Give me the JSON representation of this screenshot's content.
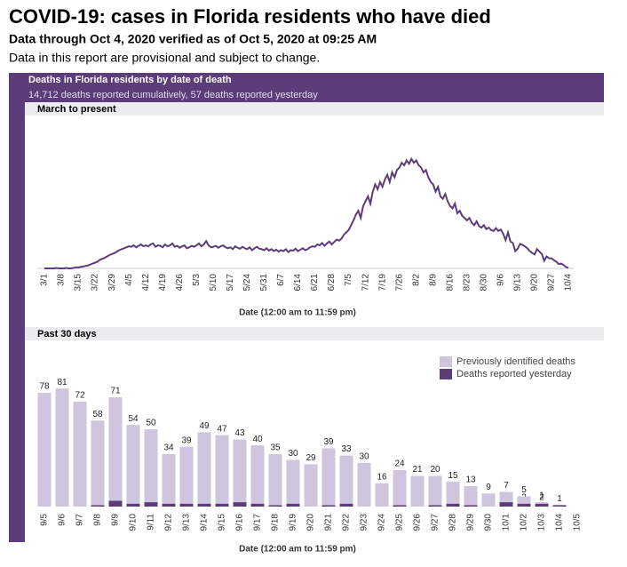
{
  "header": {
    "title": "COVID-19: cases in Florida residents who have died",
    "subtitle": "Data through Oct 4, 2020 verified as of Oct 5, 2020 at 09:25 AM",
    "note": "Data in this report are provisional and subject to change."
  },
  "panel": {
    "title": "Deaths in Florida residents by date of death",
    "summary": "14,712 deaths reported cumulatively, 57 deaths reported yesterday"
  },
  "chart_data": [
    {
      "type": "line",
      "title": "March to present",
      "x_label": "Date (12:00 am to 11:59 pm)",
      "color": "#5c3d7a",
      "ylim": [
        0,
        250
      ],
      "categories": [
        "3/1",
        null,
        null,
        null,
        null,
        null,
        null,
        "3/8",
        null,
        null,
        null,
        null,
        null,
        null,
        "3/15",
        null,
        null,
        null,
        null,
        null,
        null,
        "3/22",
        null,
        null,
        null,
        null,
        null,
        null,
        "3/29",
        null,
        null,
        null,
        null,
        null,
        null,
        "4/5",
        null,
        null,
        null,
        null,
        null,
        null,
        "4/12",
        null,
        null,
        null,
        null,
        null,
        null,
        "4/19",
        null,
        null,
        null,
        null,
        null,
        null,
        "4/26",
        null,
        null,
        null,
        null,
        null,
        null,
        "5/3",
        null,
        null,
        null,
        null,
        null,
        null,
        "5/10",
        null,
        null,
        null,
        null,
        null,
        null,
        "5/17",
        null,
        null,
        null,
        null,
        null,
        null,
        "5/24",
        null,
        null,
        null,
        null,
        null,
        null,
        "5/31",
        null,
        null,
        null,
        null,
        null,
        null,
        "6/7",
        null,
        null,
        null,
        null,
        null,
        null,
        "6/14",
        null,
        null,
        null,
        null,
        null,
        null,
        "6/21",
        null,
        null,
        null,
        null,
        null,
        null,
        "6/28",
        null,
        null,
        null,
        null,
        null,
        null,
        "7/5",
        null,
        null,
        null,
        null,
        null,
        null,
        "7/12",
        null,
        null,
        null,
        null,
        null,
        null,
        "7/19",
        null,
        null,
        null,
        null,
        null,
        null,
        "7/26",
        null,
        null,
        null,
        null,
        null,
        null,
        "8/2",
        null,
        null,
        null,
        null,
        null,
        null,
        "8/9",
        null,
        null,
        null,
        null,
        null,
        null,
        "8/16",
        null,
        null,
        null,
        null,
        null,
        null,
        "8/23",
        null,
        null,
        null,
        null,
        null,
        null,
        "8/30",
        null,
        null,
        null,
        null,
        null,
        null,
        "9/6",
        null,
        null,
        null,
        null,
        null,
        null,
        "9/13",
        null,
        null,
        null,
        null,
        null,
        null,
        "9/20",
        null,
        null,
        null,
        null,
        null,
        null,
        "9/27",
        null,
        null,
        null,
        null,
        null,
        null,
        "10/4"
      ],
      "values": [
        0,
        0,
        0,
        0,
        0,
        1,
        0,
        0,
        0,
        1,
        0,
        0,
        1,
        2,
        2,
        3,
        4,
        5,
        6,
        8,
        10,
        12,
        14,
        18,
        20,
        22,
        25,
        28,
        30,
        32,
        35,
        38,
        40,
        42,
        44,
        46,
        45,
        48,
        44,
        47,
        50,
        46,
        48,
        46,
        50,
        52,
        45,
        48,
        47,
        44,
        50,
        46,
        48,
        52,
        45,
        47,
        43,
        46,
        48,
        42,
        44,
        47,
        45,
        48,
        52,
        46,
        50,
        57,
        48,
        44,
        45,
        47,
        43,
        46,
        48,
        44,
        42,
        44,
        40,
        46,
        43,
        41,
        45,
        42,
        40,
        44,
        38,
        42,
        45,
        41,
        40,
        38,
        42,
        37,
        40,
        36,
        39,
        35,
        38,
        36,
        40,
        34,
        38,
        37,
        41,
        36,
        39,
        42,
        38,
        40,
        44,
        46,
        45,
        50,
        48,
        53,
        47,
        52,
        56,
        50,
        55,
        60,
        58,
        62,
        70,
        75,
        80,
        90,
        100,
        112,
        120,
        105,
        130,
        140,
        150,
        135,
        160,
        175,
        165,
        180,
        170,
        185,
        195,
        180,
        200,
        190,
        205,
        210,
        220,
        215,
        225,
        218,
        228,
        220,
        225,
        215,
        210,
        200,
        205,
        190,
        180,
        175,
        160,
        170,
        150,
        145,
        155,
        140,
        130,
        125,
        135,
        115,
        120,
        110,
        105,
        100,
        105,
        95,
        90,
        98,
        88,
        85,
        90,
        82,
        85,
        80,
        78,
        84,
        78,
        81,
        72,
        59,
        75,
        56,
        53,
        36,
        41,
        51,
        49,
        46,
        42,
        36,
        32,
        29,
        40,
        35,
        30,
        16,
        25,
        21,
        21,
        17,
        14,
        9,
        10,
        7,
        3,
        1
      ]
    },
    {
      "type": "stacked_bar",
      "title": "Past 30 days",
      "x_label": "Date (12:00 am to 11:59 pm)",
      "ylim": [
        0,
        100
      ],
      "categories": [
        "9/5",
        "9/6",
        "9/7",
        "9/8",
        "9/9",
        "9/10",
        "9/11",
        "9/12",
        "9/13",
        "9/14",
        "9/15",
        "9/16",
        "9/17",
        "9/18",
        "9/19",
        "9/20",
        "9/21",
        "9/22",
        "9/23",
        "9/24",
        "9/25",
        "9/26",
        "9/27",
        "9/28",
        "9/29",
        "9/30",
        "10/1",
        "10/2",
        "10/3",
        "10/4",
        "10/5"
      ],
      "series": [
        {
          "name": "Deaths reported yesterday",
          "color": "#5c3d7a",
          "values": [
            0,
            0,
            0,
            1,
            4,
            2,
            3,
            2,
            2,
            2,
            2,
            3,
            2,
            1,
            2,
            0,
            1,
            2,
            0,
            0,
            1,
            0,
            1,
            2,
            1,
            0,
            3,
            2,
            2,
            1,
            0
          ]
        },
        {
          "name": "Previously identified deaths",
          "color": "#cfc5de",
          "values": [
            78,
            81,
            72,
            58,
            71,
            54,
            50,
            34,
            39,
            49,
            47,
            43,
            40,
            35,
            30,
            29,
            39,
            33,
            30,
            16,
            24,
            21,
            20,
            15,
            13,
            9,
            7,
            5,
            1,
            0,
            0
          ]
        }
      ]
    }
  ]
}
